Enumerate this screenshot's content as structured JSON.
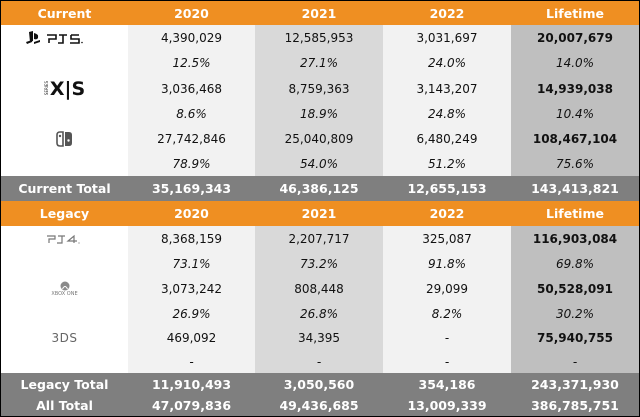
{
  "current": {
    "header": [
      "Current",
      "2020",
      "2021",
      "2022",
      "Lifetime"
    ],
    "platforms": [
      {
        "name": "PS5",
        "logo_icon": "ps5-logo-icon",
        "units": [
          "4,390,029",
          "12,585,953",
          "3,031,697",
          "20,007,679"
        ],
        "share": [
          "12.5%",
          "27.1%",
          "24.0%",
          "14.0%"
        ]
      },
      {
        "name": "X|S",
        "logo_icon": "xbox-series-logo-icon",
        "logo_small": "SERIES",
        "units": [
          "3,036,468",
          "8,759,363",
          "3,143,207",
          "14,939,038"
        ],
        "share": [
          "8.6%",
          "18.9%",
          "24.8%",
          "10.4%"
        ]
      },
      {
        "name": "Switch",
        "logo_icon": "nintendo-switch-logo-icon",
        "units": [
          "27,742,846",
          "25,040,809",
          "6,480,249",
          "108,467,104"
        ],
        "share": [
          "78.9%",
          "54.0%",
          "51.2%",
          "75.6%"
        ]
      }
    ],
    "total": [
      "Current Total",
      "35,169,343",
      "46,386,125",
      "12,655,153",
      "143,413,821"
    ]
  },
  "legacy": {
    "header": [
      "Legacy",
      "2020",
      "2021",
      "2022",
      "Lifetime"
    ],
    "platforms": [
      {
        "name": "PS4",
        "logo_icon": "ps4-logo-icon",
        "units": [
          "8,368,159",
          "2,207,717",
          "325,087",
          "116,903,084"
        ],
        "share": [
          "73.1%",
          "73.2%",
          "91.8%",
          "69.8%"
        ]
      },
      {
        "name": "XBOX ONE",
        "logo_icon": "xbox-one-logo-icon",
        "units": [
          "3,073,242",
          "808,448",
          "29,099",
          "50,528,091"
        ],
        "share": [
          "26.9%",
          "26.8%",
          "8.2%",
          "30.2%"
        ]
      },
      {
        "name": "3DS",
        "logo_icon": "3ds-logo-icon",
        "units": [
          "469,092",
          "34,395",
          "-",
          "75,940,755"
        ],
        "share": [
          "-",
          "-",
          "-",
          "-"
        ]
      }
    ],
    "total": [
      "Legacy Total",
      "11,910,493",
      "3,050,560",
      "354,186",
      "243,371,930"
    ]
  },
  "all_total": [
    "All Total",
    "47,079,836",
    "49,436,685",
    "13,009,339",
    "386,785,751"
  ],
  "colors": {
    "header": "#ef8f22",
    "total": "#7f7f7f",
    "col_light": "#f2f2f2",
    "col_mid": "#d9d9d9",
    "col_dark": "#bfbfbf"
  }
}
